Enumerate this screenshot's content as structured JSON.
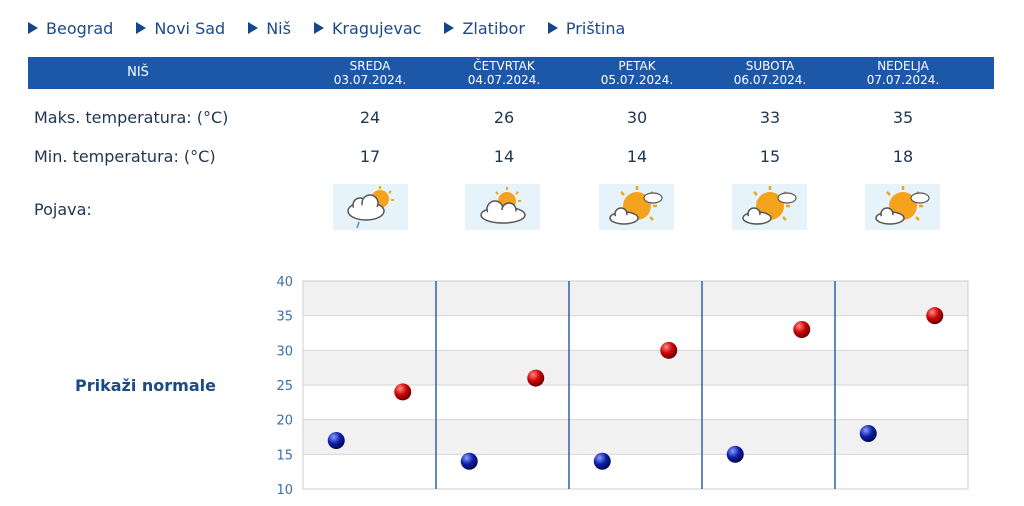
{
  "nav": {
    "cities": [
      "Beograd",
      "Novi Sad",
      "Niš",
      "Kragujevac",
      "Zlatibor",
      "Priština"
    ]
  },
  "header": {
    "city": "NIŠ",
    "days": [
      {
        "name": "SREDA",
        "date": "03.07.2024."
      },
      {
        "name": "ČETVRTAK",
        "date": "04.07.2024."
      },
      {
        "name": "PETAK",
        "date": "05.07.2024."
      },
      {
        "name": "SUBOTA",
        "date": "06.07.2024."
      },
      {
        "name": "NEDELJA",
        "date": "07.07.2024."
      }
    ]
  },
  "rows": {
    "max_label": "Maks. temperatura: (°C)",
    "min_label": "Min. temperatura: (°C)",
    "phenomenon_label": "Pojava:",
    "max": [
      "24",
      "26",
      "30",
      "33",
      "35"
    ],
    "min": [
      "17",
      "14",
      "14",
      "15",
      "18"
    ],
    "icons": [
      "sun-cloud-rain-icon",
      "sun-cloud-icon",
      "sun-cloud-icon",
      "sun-cloud-icon",
      "sun-cloud-icon"
    ]
  },
  "normals_label": "Prikaži normale",
  "colors": {
    "header_bg": "#1d57a8",
    "max_marker": "#cc0000",
    "min_marker": "#0b1fa8"
  },
  "chart_data": {
    "type": "scatter",
    "title": "",
    "xlabel": "",
    "ylabel": "",
    "categories": [
      "SREDA",
      "ČETVRTAK",
      "PETAK",
      "SUBOTA",
      "NEDELJA"
    ],
    "ylim": [
      10,
      40
    ],
    "yticks": [
      "10",
      "15",
      "20",
      "25",
      "30",
      "35",
      "40"
    ],
    "series": [
      {
        "values": [
          24,
          26,
          30,
          33,
          35
        ]
      },
      {
        "values": [
          17,
          14,
          14,
          15,
          18
        ]
      }
    ],
    "grid": true
  }
}
